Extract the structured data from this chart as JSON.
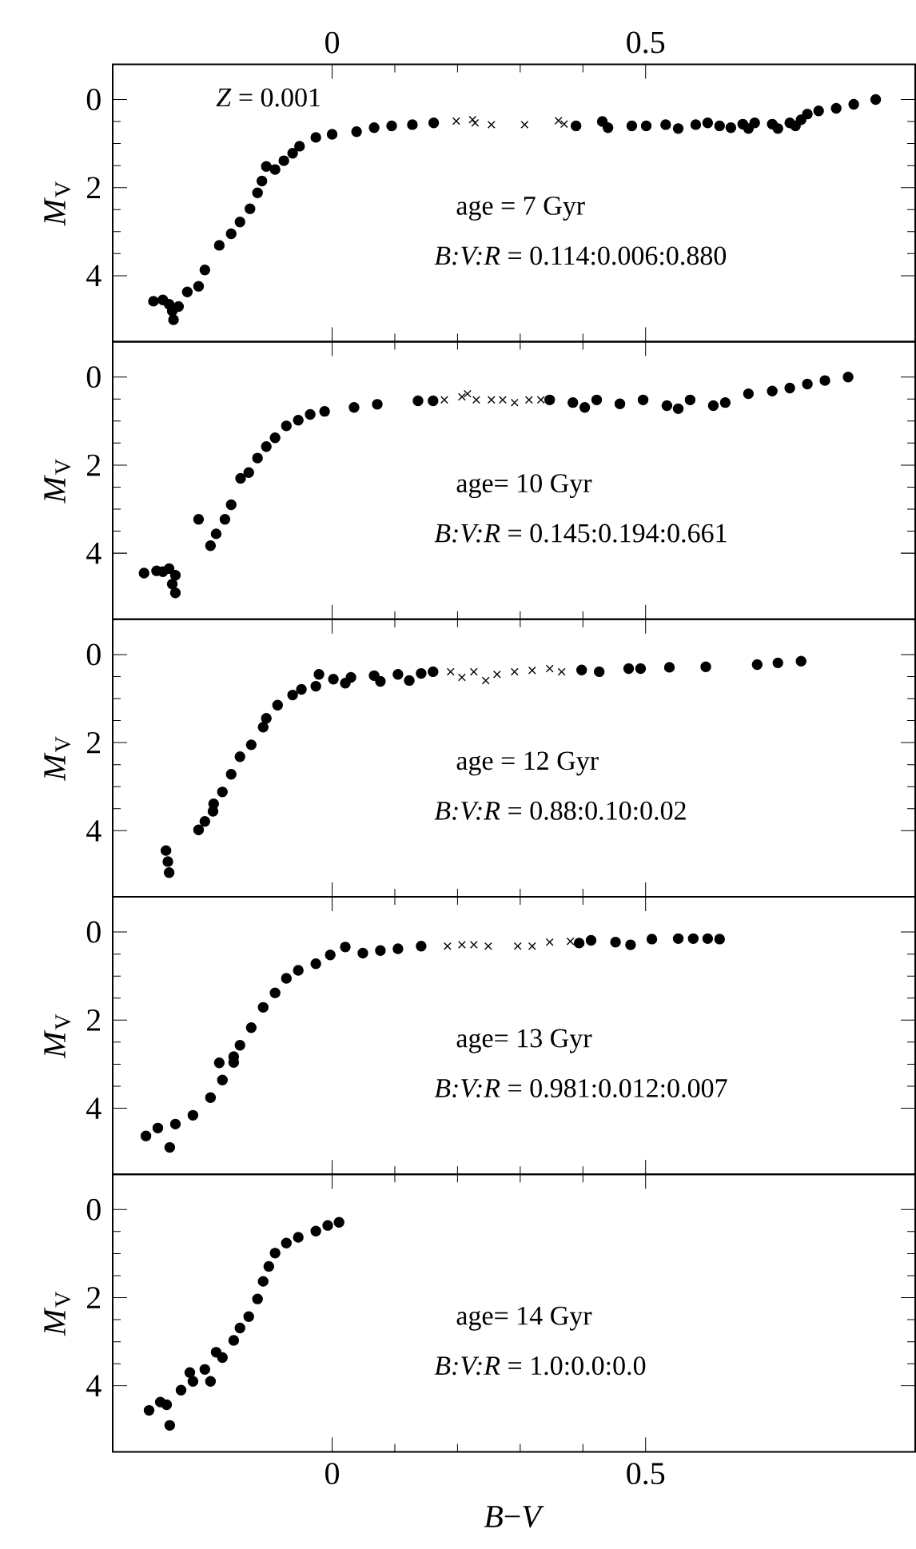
{
  "chart_data": [
    {
      "type": "scatter",
      "ylabel": "*M*$_{V}$",
      "xlim": [
        -0.35,
        0.93
      ],
      "xticks": [
        0,
        0.5
      ],
      "x2lim": [
        -0.35,
        0.93
      ],
      "x2ticks": [
        0,
        0.5
      ],
      "ylim": [
        5.5,
        -0.8
      ],
      "yticks": [
        0,
        2,
        4
      ],
      "tick_labels": "y",
      "annotations": [
        "*Z* = 0.001",
        "age = 7 Gyr",
        "*B:V:R* = 0.114:0.006:0.880"
      ],
      "series": [
        {
          "color": "#000000",
          "marker": "circle",
          "x": [
            -0.285,
            -0.27,
            -0.26,
            -0.255,
            -0.253,
            -0.245,
            -0.231,
            -0.213,
            -0.203,
            -0.18,
            -0.161,
            -0.147,
            -0.131,
            -0.119,
            -0.112,
            -0.105,
            -0.091,
            -0.077,
            -0.063,
            -0.052,
            -0.026,
            0,
            0.039,
            0.067,
            0.095,
            0.128,
            0.162,
            0.389,
            0.431,
            0.44,
            0.478,
            0.501,
            0.532,
            0.552,
            0.58,
            0.599,
            0.618,
            0.636,
            0.655,
            0.664,
            0.674,
            0.702,
            0.711,
            0.73,
            0.739,
            0.748,
            0.758,
            0.776,
            0.804,
            0.832,
            0.867
          ],
          "values": [
            4.58,
            4.55,
            4.65,
            4.8,
            5.0,
            4.7,
            4.37,
            4.24,
            3.87,
            3.31,
            3.05,
            2.78,
            2.48,
            2.12,
            1.85,
            1.52,
            1.59,
            1.39,
            1.22,
            1.06,
            0.86,
            0.79,
            0.73,
            0.64,
            0.6,
            0.57,
            0.53,
            0.6,
            0.5,
            0.64,
            0.6,
            0.6,
            0.57,
            0.66,
            0.57,
            0.53,
            0.6,
            0.64,
            0.56,
            0.66,
            0.53,
            0.56,
            0.66,
            0.53,
            0.6,
            0.46,
            0.33,
            0.26,
            0.2,
            0.11,
            0.0
          ]
        },
        {
          "color": "#000000",
          "marker": "cross",
          "x": [
            0.198,
            0.224,
            0.228,
            0.254,
            0.307,
            0.361,
            0.37
          ],
          "values": [
            0.49,
            0.46,
            0.53,
            0.57,
            0.57,
            0.48,
            0.56
          ]
        }
      ]
    },
    {
      "type": "scatter",
      "ylabel": "*M*$_{V}$",
      "xlim": [
        -0.35,
        0.93
      ],
      "xticks": [
        0,
        0.5
      ],
      "ylim": [
        5.5,
        -0.8
      ],
      "yticks": [
        0,
        2,
        4
      ],
      "tick_labels": "y",
      "annotations": [
        "age= 10 Gyr",
        "*B:V:R* = 0.145:0.194:0.661"
      ],
      "series": [
        {
          "color": "#000000",
          "marker": "circle",
          "x": [
            -0.3,
            -0.28,
            -0.26,
            -0.25,
            -0.255,
            -0.25,
            -0.27,
            -0.213,
            -0.194,
            -0.185,
            -0.171,
            -0.161,
            -0.146,
            -0.133,
            -0.119,
            -0.105,
            -0.091,
            -0.073,
            -0.054,
            -0.035,
            -0.012,
            0.035,
            0.072,
            0.137,
            0.161,
            0.347,
            0.384,
            0.403,
            0.422,
            0.459,
            0.496,
            0.534,
            0.552,
            0.571,
            0.608,
            0.627,
            0.664,
            0.702,
            0.73,
            0.758,
            0.786,
            0.823
          ],
          "values": [
            4.45,
            4.4,
            4.35,
            4.5,
            4.7,
            4.9,
            4.42,
            3.23,
            3.83,
            3.56,
            3.23,
            2.9,
            2.3,
            2.17,
            1.84,
            1.58,
            1.38,
            1.11,
            0.98,
            0.85,
            0.78,
            0.69,
            0.62,
            0.54,
            0.54,
            0.52,
            0.58,
            0.69,
            0.52,
            0.61,
            0.52,
            0.65,
            0.72,
            0.52,
            0.65,
            0.58,
            0.38,
            0.32,
            0.25,
            0.16,
            0.08,
            0.0
          ]
        },
        {
          "color": "#000000",
          "marker": "cross",
          "x": [
            0.179,
            0.207,
            0.216,
            0.23,
            0.254,
            0.272,
            0.291,
            0.314,
            0.333
          ],
          "values": [
            0.52,
            0.45,
            0.38,
            0.52,
            0.52,
            0.52,
            0.58,
            0.52,
            0.52
          ]
        }
      ]
    },
    {
      "type": "scatter",
      "ylabel": "*M*$_{V}$",
      "xlim": [
        -0.35,
        0.93
      ],
      "xticks": [
        0,
        0.5
      ],
      "ylim": [
        5.5,
        -0.8
      ],
      "yticks": [
        0,
        2,
        4
      ],
      "tick_labels": "y",
      "annotations": [
        "age = 12 Gyr",
        "*B:V:R* = 0.88:0.10:0.02"
      ],
      "series": [
        {
          "color": "#000000",
          "marker": "circle",
          "x": [
            -0.265,
            -0.262,
            -0.26,
            -0.213,
            -0.19,
            -0.203,
            -0.189,
            -0.175,
            -0.161,
            -0.147,
            -0.129,
            -0.11,
            -0.105,
            -0.087,
            -0.063,
            -0.049,
            -0.021,
            -0.026,
            0.002,
            0.021,
            0.03,
            0.067,
            0.077,
            0.105,
            0.123,
            0.142,
            0.161,
            0.398,
            0.426,
            0.473,
            0.492,
            0.538,
            0.596,
            0.678,
            0.711,
            0.748
          ],
          "values": [
            4.45,
            4.7,
            4.95,
            3.98,
            3.56,
            3.79,
            3.39,
            3.12,
            2.72,
            2.32,
            2.05,
            1.65,
            1.45,
            1.15,
            0.92,
            0.79,
            0.45,
            0.72,
            0.56,
            0.65,
            0.52,
            0.48,
            0.61,
            0.45,
            0.59,
            0.43,
            0.39,
            0.35,
            0.39,
            0.32,
            0.32,
            0.29,
            0.28,
            0.23,
            0.19,
            0.15
          ]
        },
        {
          "color": "#000000",
          "marker": "cross",
          "x": [
            0.189,
            0.207,
            0.226,
            0.245,
            0.263,
            0.291,
            0.319,
            0.347,
            0.366
          ],
          "values": [
            0.39,
            0.52,
            0.39,
            0.59,
            0.45,
            0.39,
            0.36,
            0.32,
            0.39
          ]
        }
      ]
    },
    {
      "type": "scatter",
      "ylabel": "*M*$_{V}$",
      "xlim": [
        -0.35,
        0.93
      ],
      "xticks": [
        0,
        0.5
      ],
      "ylim": [
        5.5,
        -0.8
      ],
      "yticks": [
        0,
        2,
        4
      ],
      "tick_labels": "y",
      "annotations": [
        "age= 13 Gyr",
        "*B:V:R* = 0.981:0.012:0.007"
      ],
      "series": [
        {
          "color": "#000000",
          "marker": "circle",
          "x": [
            -0.297,
            -0.278,
            -0.259,
            -0.25,
            -0.222,
            -0.194,
            -0.175,
            -0.157,
            -0.18,
            -0.157,
            -0.147,
            -0.129,
            -0.11,
            -0.091,
            -0.073,
            -0.054,
            -0.026,
            -0.003,
            0.021,
            0.049,
            0.077,
            0.105,
            0.142,
            0.394,
            0.413,
            0.452,
            0.476,
            0.51,
            0.552,
            0.576,
            0.599,
            0.618
          ],
          "values": [
            4.63,
            4.45,
            4.89,
            4.36,
            4.16,
            3.76,
            3.36,
            2.96,
            2.97,
            2.83,
            2.57,
            2.17,
            1.71,
            1.38,
            1.05,
            0.87,
            0.72,
            0.52,
            0.34,
            0.48,
            0.42,
            0.38,
            0.32,
            0.25,
            0.19,
            0.23,
            0.29,
            0.16,
            0.15,
            0.15,
            0.15,
            0.16
          ]
        },
        {
          "color": "#000000",
          "marker": "cross",
          "x": [
            0.184,
            0.207,
            0.226,
            0.249,
            0.296,
            0.319,
            0.347,
            0.38
          ],
          "values": [
            0.32,
            0.29,
            0.29,
            0.32,
            0.32,
            0.32,
            0.23,
            0.21
          ]
        }
      ]
    },
    {
      "type": "scatter",
      "ylabel": "*M*$_{V}$",
      "xlabel": "*B*−*V*",
      "xlim": [
        -0.35,
        0.93
      ],
      "xticks": [
        0,
        0.5
      ],
      "ylim": [
        5.5,
        -0.8
      ],
      "yticks": [
        0,
        2,
        4
      ],
      "annotations": [
        "age= 14 Gyr",
        "*B:V:R* = 1.0:0.0:0.0"
      ],
      "series": [
        {
          "color": "#000000",
          "marker": "circle",
          "x": [
            0.011,
            -0.007,
            -0.026,
            -0.054,
            -0.073,
            -0.091,
            -0.101,
            -0.11,
            -0.119,
            -0.133,
            -0.147,
            -0.157,
            -0.175,
            -0.185,
            -0.194,
            -0.203,
            -0.222,
            -0.227,
            -0.241,
            -0.264,
            -0.259,
            -0.274,
            -0.292
          ],
          "values": [
            0.29,
            0.36,
            0.49,
            0.63,
            0.76,
            0.99,
            1.29,
            1.63,
            2.03,
            2.43,
            2.69,
            2.97,
            3.36,
            3.24,
            3.9,
            3.63,
            3.9,
            3.7,
            4.1,
            4.43,
            4.9,
            4.37,
            4.56
          ]
        }
      ]
    }
  ]
}
